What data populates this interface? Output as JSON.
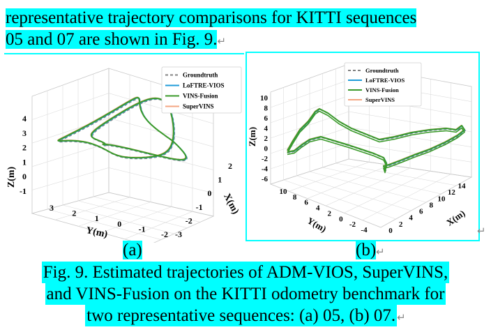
{
  "paragraph": {
    "line1": "representative trajectory comparisons for KITTI sequences",
    "line2": "05 and 07 are shown in Fig. 9."
  },
  "return_mark": "↵",
  "legend": {
    "entries": [
      {
        "name": "Groundtruth",
        "color": "#808080",
        "style": "dashed"
      },
      {
        "name": "LoFTRE-VIOS",
        "color": "#1f9bd9",
        "style": "solid"
      },
      {
        "name": "VINS-Fusion",
        "color": "#3a9a2a",
        "style": "solid"
      },
      {
        "name": "SuperVINS",
        "color": "#f4a582",
        "style": "solid"
      }
    ]
  },
  "chart_data": [
    {
      "type": "line",
      "panel": "a",
      "xlabel": "X(m)",
      "ylabel": "Y(m)",
      "zlabel": "Z(m)",
      "x_ticks": [
        "2",
        "1",
        "0",
        "-1",
        "-2",
        "-3"
      ],
      "y_ticks": [
        "3",
        "2",
        "1",
        "0",
        "-1",
        "-2"
      ],
      "z_ticks": [
        "4",
        "3",
        "2",
        "1",
        "0",
        "-1"
      ],
      "legend_position": "top-right",
      "grid": true
    },
    {
      "type": "line",
      "panel": "b",
      "xlabel": "X(m)",
      "ylabel": "Y(m)",
      "zlabel": "Z(m)",
      "x_ticks": [
        "0",
        "2",
        "4",
        "6",
        "8",
        "10",
        "12",
        "14"
      ],
      "y_ticks": [
        "10",
        "8",
        "6",
        "4",
        "2",
        "0",
        "-2",
        "-4"
      ],
      "z_ticks": [
        "10",
        "8",
        "6",
        "4",
        "2",
        "0",
        "-2",
        "-4",
        "-6"
      ],
      "legend_position": "top-right",
      "grid": true
    }
  ],
  "sublabels": {
    "a": "(a)",
    "b": "(b)"
  },
  "caption": {
    "line1": "Fig. 9. Estimated trajectories of ADM-VIOS, SuperVINS,",
    "line2": "and VINS-Fusion on the KITTI odometry benchmark for",
    "line3": "two representative sequences: (a) 05, (b) 07."
  }
}
